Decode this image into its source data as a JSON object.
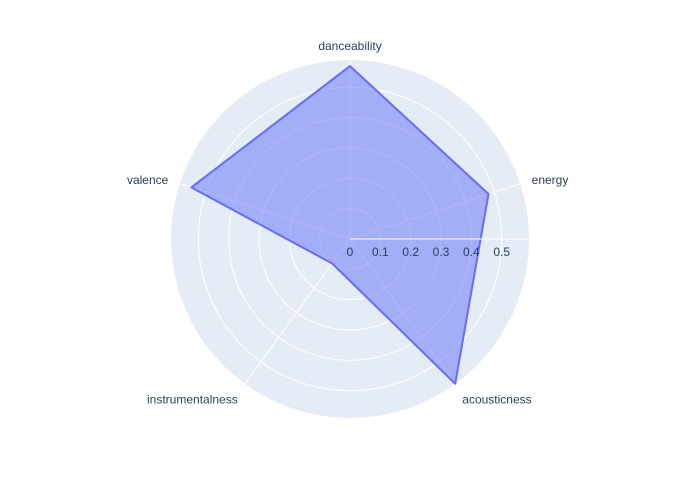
{
  "chart_data": {
    "type": "radar",
    "categories": [
      "danceability",
      "energy",
      "acousticness",
      "instrumentalness",
      "valence"
    ],
    "series": [
      {
        "values": [
          0.57,
          0.48,
          0.59,
          0.1,
          0.55
        ]
      }
    ],
    "radial_ticks": [
      "0",
      "0.1",
      "0.2",
      "0.3",
      "0.4",
      "0.5"
    ],
    "radial_tick_values": [
      0,
      0.1,
      0.2,
      0.3,
      0.4,
      0.5
    ],
    "rrange": [
      0,
      0.59
    ],
    "grid": true,
    "colors": {
      "polar_bg": "#e5ecf6",
      "grid": "#ffffff",
      "fill": "#636efa",
      "fill_opacity": 0.5,
      "line": "#636efa",
      "text": "#2a3f5f"
    }
  }
}
